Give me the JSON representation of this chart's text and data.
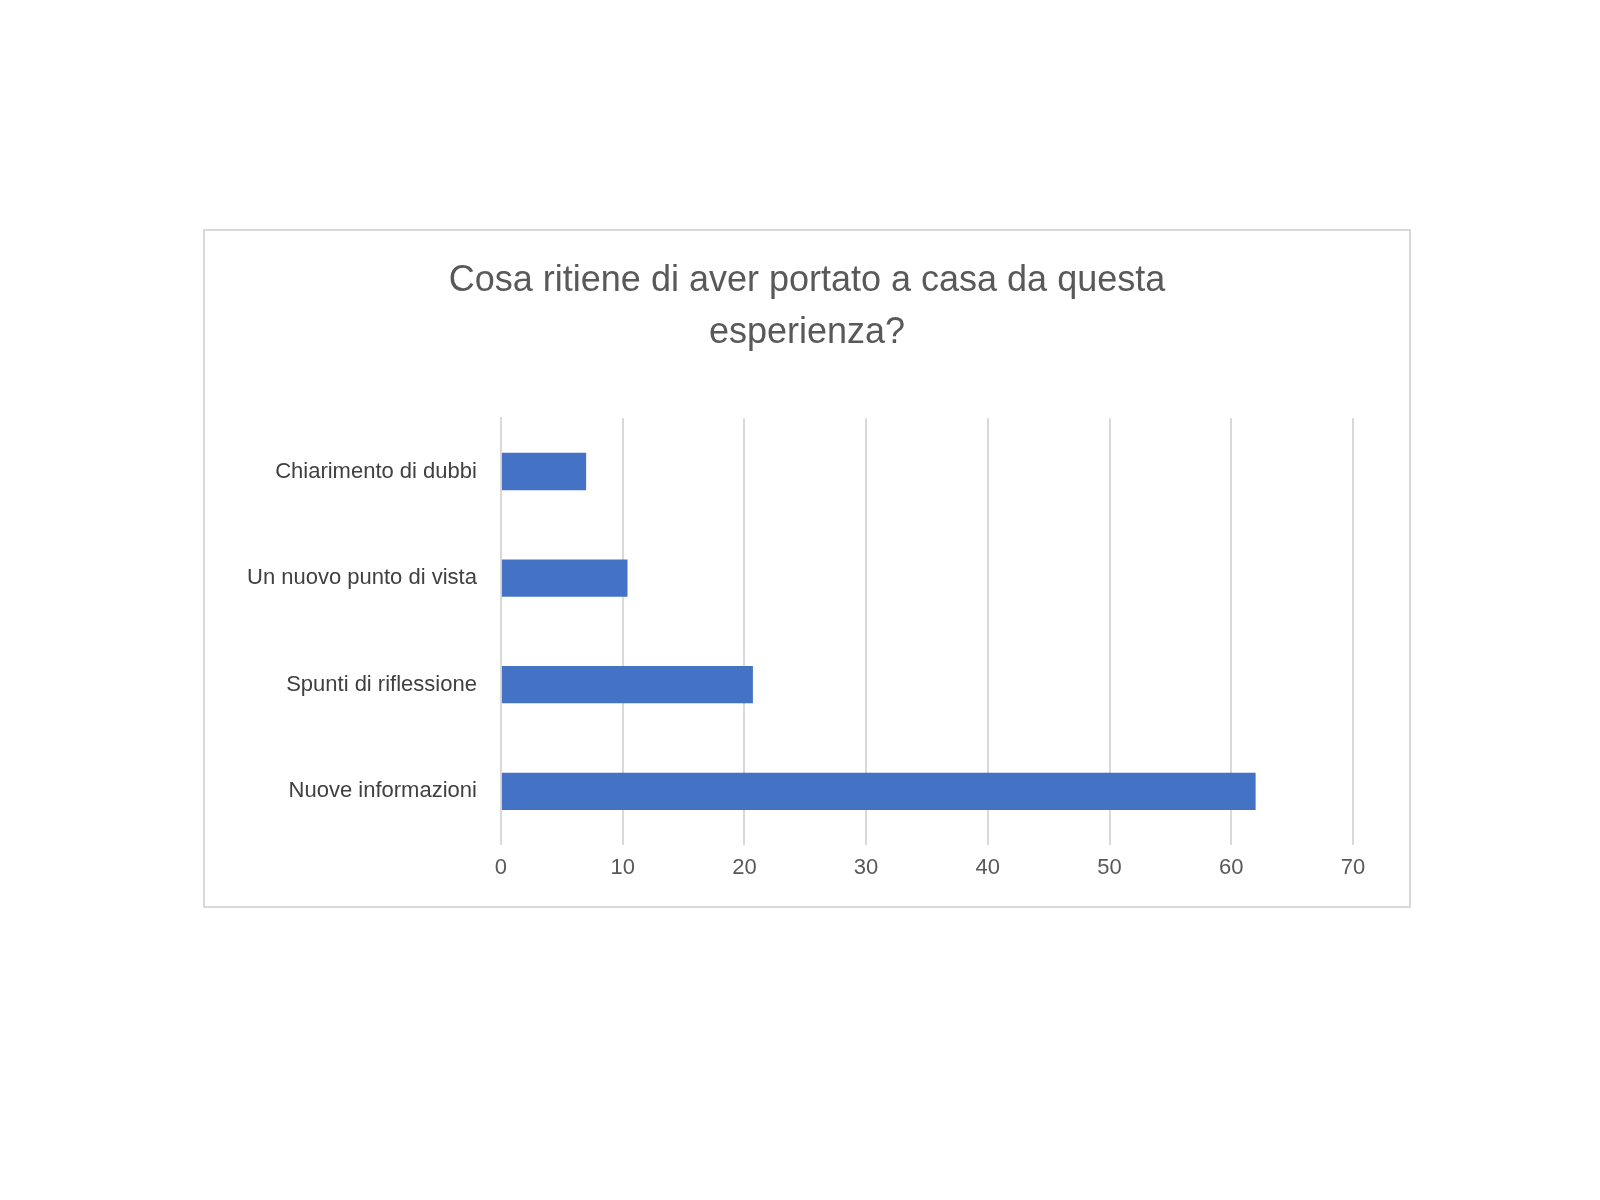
{
  "chart_data": {
    "type": "bar",
    "title": "Cosa ritiene di aver portato a casa da questa esperienza?",
    "orientation": "horizontal",
    "categories": [
      "Chiarimento di dubbi",
      "Un nuovo punto di vista",
      "Spunti di riflessione",
      "Nuove informazioni"
    ],
    "values": [
      7,
      10.4,
      20.7,
      62
    ],
    "color": "#4472c4",
    "xlim": [
      0,
      70
    ],
    "xticks": [
      0,
      10,
      20,
      30,
      40,
      50,
      60,
      70
    ],
    "grid": "x"
  }
}
